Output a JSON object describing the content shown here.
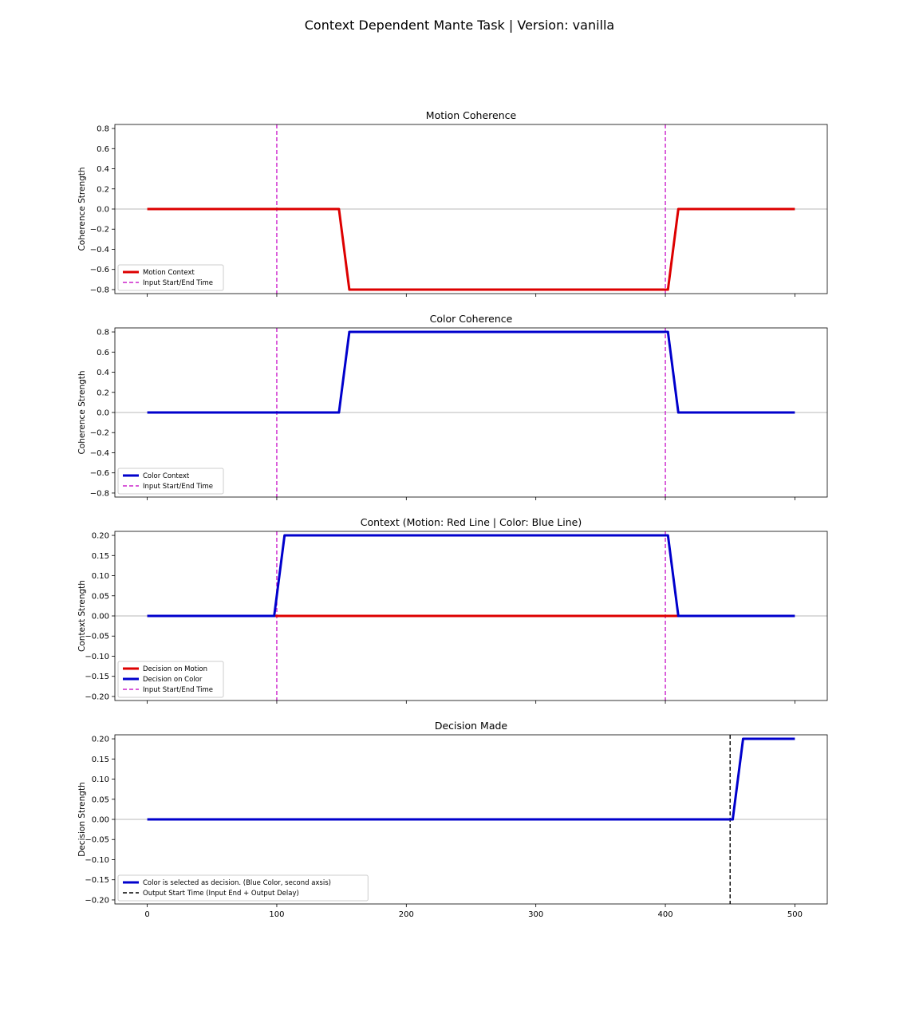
{
  "figure": {
    "suptitle": "Context Dependent Mante Task | Version: vanilla"
  },
  "chart_data": [
    {
      "type": "line",
      "title": "Motion Coherence",
      "xlabel": "",
      "ylabel": "Coherence Strength",
      "xlim": [
        -25,
        525
      ],
      "ylim": [
        -0.84,
        0.84
      ],
      "xticks": [
        0,
        100,
        200,
        300,
        400,
        500
      ],
      "xticklabels_visible": false,
      "yticks": [
        -0.8,
        -0.6,
        -0.4,
        -0.2,
        0.0,
        0.2,
        0.4,
        0.6,
        0.8
      ],
      "ytick_labels": [
        "−0.8",
        "−0.6",
        "−0.4",
        "−0.2",
        "0.0",
        "0.2",
        "0.4",
        "0.6",
        "0.8"
      ],
      "zero_line": true,
      "legend_position": "lower-left",
      "series": [
        {
          "name": "Motion Context",
          "color": "#dd0000",
          "style": "solid",
          "x": [
            0,
            148,
            156,
            400,
            402,
            410,
            500
          ],
          "y": [
            0,
            0,
            -0.8,
            -0.8,
            -0.8,
            0,
            0
          ]
        }
      ],
      "vlines": [
        {
          "name": "Input Start/End Time",
          "color": "#cc22cc",
          "style": "dashed",
          "x": [
            100,
            400
          ]
        }
      ]
    },
    {
      "type": "line",
      "title": "Color Coherence",
      "xlabel": "",
      "ylabel": "Coherence Strength",
      "xlim": [
        -25,
        525
      ],
      "ylim": [
        -0.84,
        0.84
      ],
      "xticks": [
        0,
        100,
        200,
        300,
        400,
        500
      ],
      "xticklabels_visible": false,
      "yticks": [
        -0.8,
        -0.6,
        -0.4,
        -0.2,
        0.0,
        0.2,
        0.4,
        0.6,
        0.8
      ],
      "ytick_labels": [
        "−0.8",
        "−0.6",
        "−0.4",
        "−0.2",
        "0.0",
        "0.2",
        "0.4",
        "0.6",
        "0.8"
      ],
      "zero_line": true,
      "legend_position": "lower-left",
      "series": [
        {
          "name": "Color Context",
          "color": "#0000cc",
          "style": "solid",
          "x": [
            0,
            148,
            156,
            400,
            402,
            410,
            500
          ],
          "y": [
            0,
            0,
            0.8,
            0.8,
            0.8,
            0,
            0
          ]
        }
      ],
      "vlines": [
        {
          "name": "Input Start/End Time",
          "color": "#cc22cc",
          "style": "dashed",
          "x": [
            100,
            400
          ]
        }
      ]
    },
    {
      "type": "line",
      "title": "Context (Motion: Red Line | Color: Blue Line)",
      "xlabel": "",
      "ylabel": "Context Strength",
      "xlim": [
        -25,
        525
      ],
      "ylim": [
        -0.21,
        0.21
      ],
      "xticks": [
        0,
        100,
        200,
        300,
        400,
        500
      ],
      "xticklabels_visible": false,
      "yticks": [
        -0.2,
        -0.15,
        -0.1,
        -0.05,
        0.0,
        0.05,
        0.1,
        0.15,
        0.2
      ],
      "ytick_labels": [
        "−0.20",
        "−0.15",
        "−0.10",
        "−0.05",
        "0.00",
        "0.05",
        "0.10",
        "0.15",
        "0.20"
      ],
      "zero_line": true,
      "legend_position": "lower-left",
      "series": [
        {
          "name": "Decision on Motion",
          "color": "#dd0000",
          "style": "solid",
          "x": [
            0,
            410
          ],
          "y": [
            0,
            0
          ]
        },
        {
          "name": "Decision on Color",
          "color": "#0000cc",
          "style": "solid",
          "x": [
            0,
            98,
            106,
            400,
            402,
            410,
            500
          ],
          "y": [
            0,
            0,
            0.2,
            0.2,
            0.2,
            0,
            0
          ]
        }
      ],
      "vlines": [
        {
          "name": "Input Start/End Time",
          "color": "#cc22cc",
          "style": "dashed",
          "x": [
            100,
            400
          ]
        }
      ]
    },
    {
      "type": "line",
      "title": "Decision Made",
      "xlabel": "",
      "ylabel": "Decision Strength",
      "xlim": [
        -25,
        525
      ],
      "ylim": [
        -0.21,
        0.21
      ],
      "xticks": [
        0,
        100,
        200,
        300,
        400,
        500
      ],
      "xticklabels_visible": true,
      "xtick_labels": [
        "0",
        "100",
        "200",
        "300",
        "400",
        "500"
      ],
      "yticks": [
        -0.2,
        -0.15,
        -0.1,
        -0.05,
        0.0,
        0.05,
        0.1,
        0.15,
        0.2
      ],
      "ytick_labels": [
        "−0.20",
        "−0.15",
        "−0.10",
        "−0.05",
        "0.00",
        "0.05",
        "0.10",
        "0.15",
        "0.20"
      ],
      "zero_line": true,
      "legend_position": "lower-left",
      "series": [
        {
          "name": "Color is selected as decision. (Blue Color, second axsis)",
          "color": "#0000cc",
          "style": "solid",
          "x": [
            0,
            450,
            452,
            460,
            500
          ],
          "y": [
            0,
            0,
            0,
            0.2,
            0.2
          ]
        }
      ],
      "vlines": [
        {
          "name": "Output Start Time (Input End + Output Delay)",
          "color": "#000000",
          "style": "dashed",
          "x": [
            450
          ]
        }
      ]
    }
  ]
}
